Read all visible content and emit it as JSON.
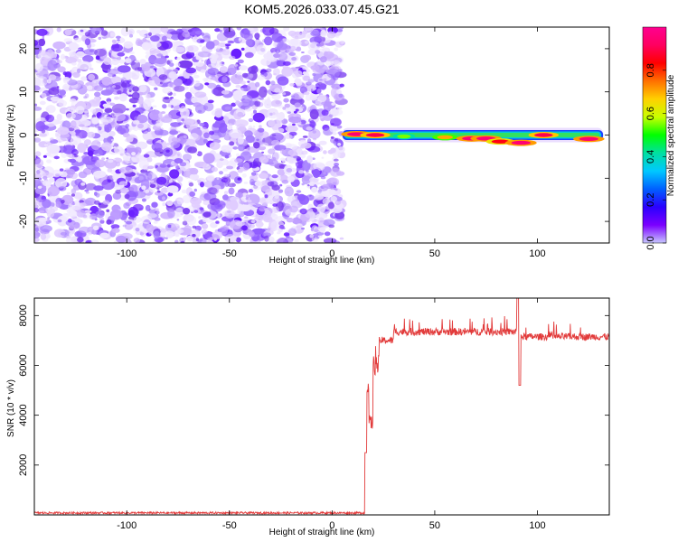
{
  "title": "KOM5.2026.033.07.45.G21",
  "colors": {
    "snr_line": "#e23b3b",
    "colorbar_stops": [
      "#c8c8ff",
      "#7b00ff",
      "#2a00ff",
      "#0060ff",
      "#00c8ff",
      "#00e0a0",
      "#00ff00",
      "#c8ff00",
      "#ffd000",
      "#ff7000",
      "#ff0000",
      "#ff0060",
      "#ff0090"
    ]
  },
  "chart_data": [
    {
      "type": "heatmap",
      "xlabel": "Height of straight line (km)",
      "ylabel": "Frequency (Hz)",
      "xlim": [
        -145,
        135
      ],
      "ylim": [
        -25,
        25
      ],
      "xticks": [
        -100,
        -50,
        0,
        50,
        100
      ],
      "yticks": [
        -20,
        -10,
        0,
        10,
        20
      ],
      "noise_region": {
        "x": [
          -145,
          5
        ],
        "y": [
          -25,
          25
        ]
      },
      "signal_band": {
        "x": [
          5,
          132
        ],
        "center_freq": 0,
        "peaks": [
          {
            "x": 12,
            "f": 0.2,
            "amp": 0.95
          },
          {
            "x": 21,
            "f": 0,
            "amp": 0.9
          },
          {
            "x": 35,
            "f": -0.3,
            "amp": 0.55
          },
          {
            "x": 55,
            "f": -0.5,
            "amp": 0.7
          },
          {
            "x": 68,
            "f": -0.8,
            "amp": 0.95
          },
          {
            "x": 75,
            "f": -0.8,
            "amp": 0.95
          },
          {
            "x": 82,
            "f": -1.5,
            "amp": 0.85
          },
          {
            "x": 92,
            "f": -1.8,
            "amp": 0.95
          },
          {
            "x": 103,
            "f": 0,
            "amp": 0.9
          },
          {
            "x": 125,
            "f": -0.9,
            "amp": 0.95
          }
        ]
      },
      "colorbar": {
        "label": "Normalized spectral amplitude",
        "range": [
          0,
          1
        ],
        "ticks": [
          "0.0",
          "0.2",
          "0.4",
          "0.6",
          "0.8"
        ]
      }
    },
    {
      "type": "line",
      "xlabel": "Height of straight line (km)",
      "ylabel": "SNR (10 * v/v)",
      "xlim": [
        -145,
        135
      ],
      "ylim": [
        0,
        8700
      ],
      "xticks": [
        -100,
        -50,
        0,
        50,
        100
      ],
      "yticks": [
        2000,
        4000,
        6000,
        8000
      ],
      "series": [
        {
          "color": "#e23b3b",
          "segments": [
            {
              "x_start": -145,
              "x_end": 16,
              "level": 80,
              "noise": 40
            },
            {
              "x_start": 16,
              "x_end": 17,
              "level": 2500,
              "noise": 0
            },
            {
              "x_start": 17,
              "x_end": 18,
              "level": 5000,
              "noise": 150
            },
            {
              "x_start": 18,
              "x_end": 20,
              "level": 3700,
              "noise": 300
            },
            {
              "x_start": 20,
              "x_end": 23,
              "level": 6000,
              "noise": 400
            },
            {
              "x_start": 23,
              "x_end": 30,
              "level": 7000,
              "noise": 150
            },
            {
              "x_start": 30,
              "x_end": 90,
              "level": 7350,
              "noise": 150
            },
            {
              "x_start": 90,
              "x_end": 91,
              "level": 8700,
              "noise": 0
            },
            {
              "x_start": 91,
              "x_end": 92,
              "level": 5200,
              "noise": 0
            },
            {
              "x_start": 92,
              "x_end": 135,
              "level": 7150,
              "noise": 140
            }
          ]
        }
      ]
    }
  ]
}
